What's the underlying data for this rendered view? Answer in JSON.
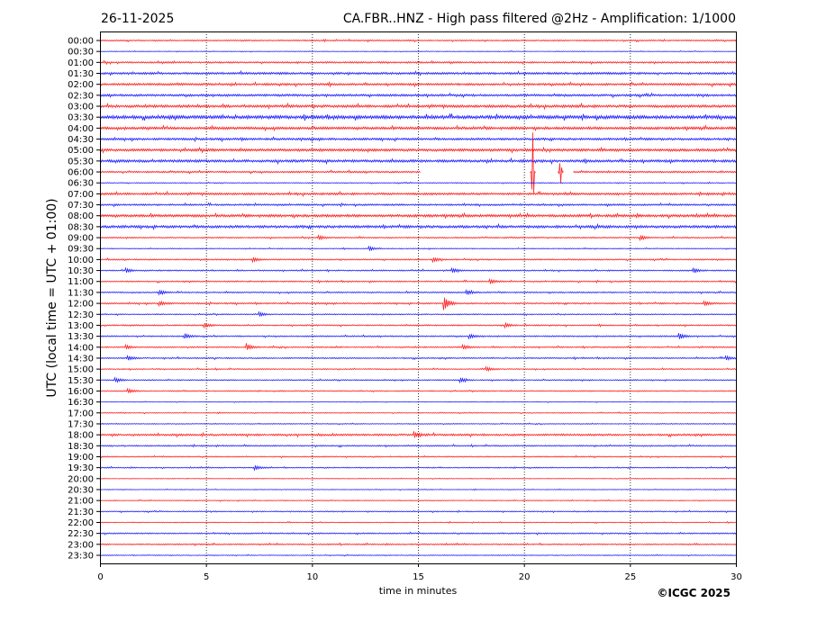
{
  "chart_data": {
    "type": "line",
    "title_left": "26-11-2025",
    "title": "CA.FBR..HNZ - High pass filtered @2Hz - Amplification: 1/1000",
    "xlabel": "time in minutes",
    "ylabel": "UTC (local time = UTC + 01:00)",
    "xlim": [
      0,
      30
    ],
    "xticks": [
      0,
      5,
      10,
      15,
      20,
      25,
      30
    ],
    "grid": "vertical dotted at every 5 minutes",
    "copyright": "©ICGC 2025",
    "colors": {
      "even": "#ff0000",
      "odd": "#0000ff"
    },
    "rows": [
      "00:00",
      "00:30",
      "01:00",
      "01:30",
      "02:00",
      "02:30",
      "03:00",
      "03:30",
      "04:00",
      "04:30",
      "05:00",
      "05:30",
      "06:00",
      "06:30",
      "07:00",
      "07:30",
      "08:00",
      "08:30",
      "09:00",
      "09:30",
      "10:00",
      "10:30",
      "11:00",
      "11:30",
      "12:00",
      "12:30",
      "13:00",
      "13:30",
      "14:00",
      "14:30",
      "15:00",
      "15:30",
      "16:00",
      "16:30",
      "17:00",
      "17:30",
      "18:00",
      "18:30",
      "19:00",
      "19:30",
      "20:00",
      "20:30",
      "21:00",
      "21:30",
      "22:00",
      "22:30",
      "23:00",
      "23:30"
    ],
    "noise_level": [
      0.3,
      0.15,
      0.4,
      0.5,
      0.5,
      0.5,
      0.6,
      0.8,
      0.6,
      0.5,
      0.6,
      0.6,
      0.4,
      0.2,
      0.5,
      0.4,
      0.6,
      0.6,
      0.3,
      0.2,
      0.3,
      0.3,
      0.3,
      0.3,
      0.35,
      0.25,
      0.3,
      0.3,
      0.3,
      0.3,
      0.25,
      0.25,
      0.25,
      0.15,
      0.2,
      0.2,
      0.45,
      0.3,
      0.25,
      0.25,
      0.15,
      0.15,
      0.2,
      0.25,
      0.2,
      0.3,
      0.3,
      0.2
    ],
    "events": [
      {
        "row": "06:00",
        "minute": 20.4,
        "amplitude": 45
      },
      {
        "row": "06:00",
        "minute": 21.7,
        "amplitude": 14
      },
      {
        "row": "09:00",
        "minute": 10.3,
        "amplitude": 2
      },
      {
        "row": "09:00",
        "minute": 25.5,
        "amplitude": 2
      },
      {
        "row": "09:30",
        "minute": 12.7,
        "amplitude": 2
      },
      {
        "row": "10:00",
        "minute": 7.2,
        "amplitude": 2
      },
      {
        "row": "10:00",
        "minute": 15.7,
        "amplitude": 2
      },
      {
        "row": "10:30",
        "minute": 1.2,
        "amplitude": 2
      },
      {
        "row": "10:30",
        "minute": 16.6,
        "amplitude": 2
      },
      {
        "row": "10:30",
        "minute": 28.0,
        "amplitude": 2
      },
      {
        "row": "11:00",
        "minute": 18.4,
        "amplitude": 2
      },
      {
        "row": "11:30",
        "minute": 2.8,
        "amplitude": 2
      },
      {
        "row": "11:30",
        "minute": 17.3,
        "amplitude": 2
      },
      {
        "row": "12:00",
        "minute": 2.8,
        "amplitude": 2
      },
      {
        "row": "12:00",
        "minute": 16.2,
        "amplitude": 7
      },
      {
        "row": "12:00",
        "minute": 28.5,
        "amplitude": 2
      },
      {
        "row": "12:30",
        "minute": 7.5,
        "amplitude": 2
      },
      {
        "row": "13:00",
        "minute": 4.9,
        "amplitude": 2
      },
      {
        "row": "13:00",
        "minute": 19.1,
        "amplitude": 2
      },
      {
        "row": "13:30",
        "minute": 4.0,
        "amplitude": 2
      },
      {
        "row": "13:30",
        "minute": 17.4,
        "amplitude": 2
      },
      {
        "row": "13:30",
        "minute": 27.3,
        "amplitude": 3
      },
      {
        "row": "14:00",
        "minute": 1.2,
        "amplitude": 2
      },
      {
        "row": "14:00",
        "minute": 6.9,
        "amplitude": 3
      },
      {
        "row": "14:00",
        "minute": 17.1,
        "amplitude": 2
      },
      {
        "row": "14:30",
        "minute": 1.3,
        "amplitude": 2
      },
      {
        "row": "14:30",
        "minute": 29.5,
        "amplitude": 2
      },
      {
        "row": "15:00",
        "minute": 18.2,
        "amplitude": 2
      },
      {
        "row": "15:30",
        "minute": 0.7,
        "amplitude": 2
      },
      {
        "row": "15:30",
        "minute": 17.0,
        "amplitude": 2
      },
      {
        "row": "16:00",
        "minute": 1.3,
        "amplitude": 2
      },
      {
        "row": "18:00",
        "minute": 14.8,
        "amplitude": 3
      },
      {
        "row": "19:30",
        "minute": 7.3,
        "amplitude": 2
      }
    ],
    "gaps": [
      {
        "row": "06:00",
        "from": 15.1,
        "to": 22.3
      }
    ]
  }
}
